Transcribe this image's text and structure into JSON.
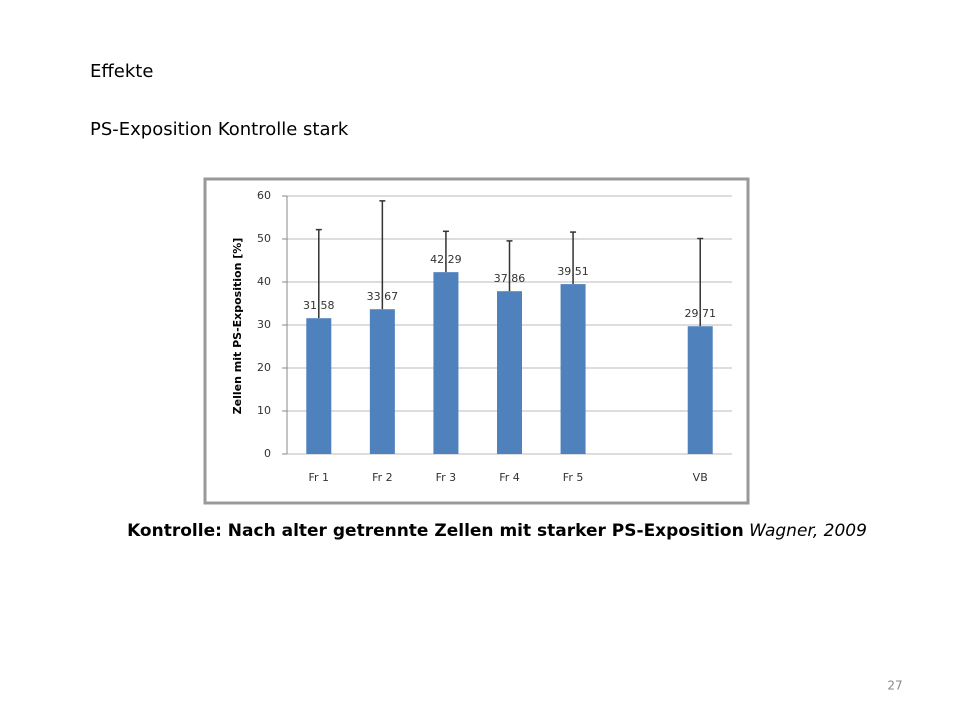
{
  "slide": {
    "heading": "Effekte",
    "subheading": "PS-Exposition Kontrolle stark",
    "caption": "Kontrolle: Nach alter getrennte Zellen mit starker PS-Exposition",
    "source": "Wagner, 2009",
    "page_number": "27"
  },
  "chart_data": {
    "type": "bar",
    "ylabel": "Zellen mit PS-Exposition [%]",
    "categories": [
      "Fr 1",
      "Fr 2",
      "Fr 3",
      "Fr 4",
      "Fr 5",
      null,
      "VB"
    ],
    "values": [
      31.58,
      33.67,
      42.29,
      37.86,
      39.51,
      null,
      29.71
    ],
    "value_labels": [
      "31,58",
      "33,67",
      "42,29",
      "37,86",
      "39,51",
      null,
      "29,71"
    ],
    "errors": [
      20.6,
      25.2,
      9.5,
      11.7,
      12.1,
      null,
      20.4
    ],
    "color": "#4f81bd",
    "ylim": [
      0,
      60
    ],
    "yticks": [
      0,
      10,
      20,
      30,
      40,
      50,
      60
    ],
    "grid": true
  }
}
